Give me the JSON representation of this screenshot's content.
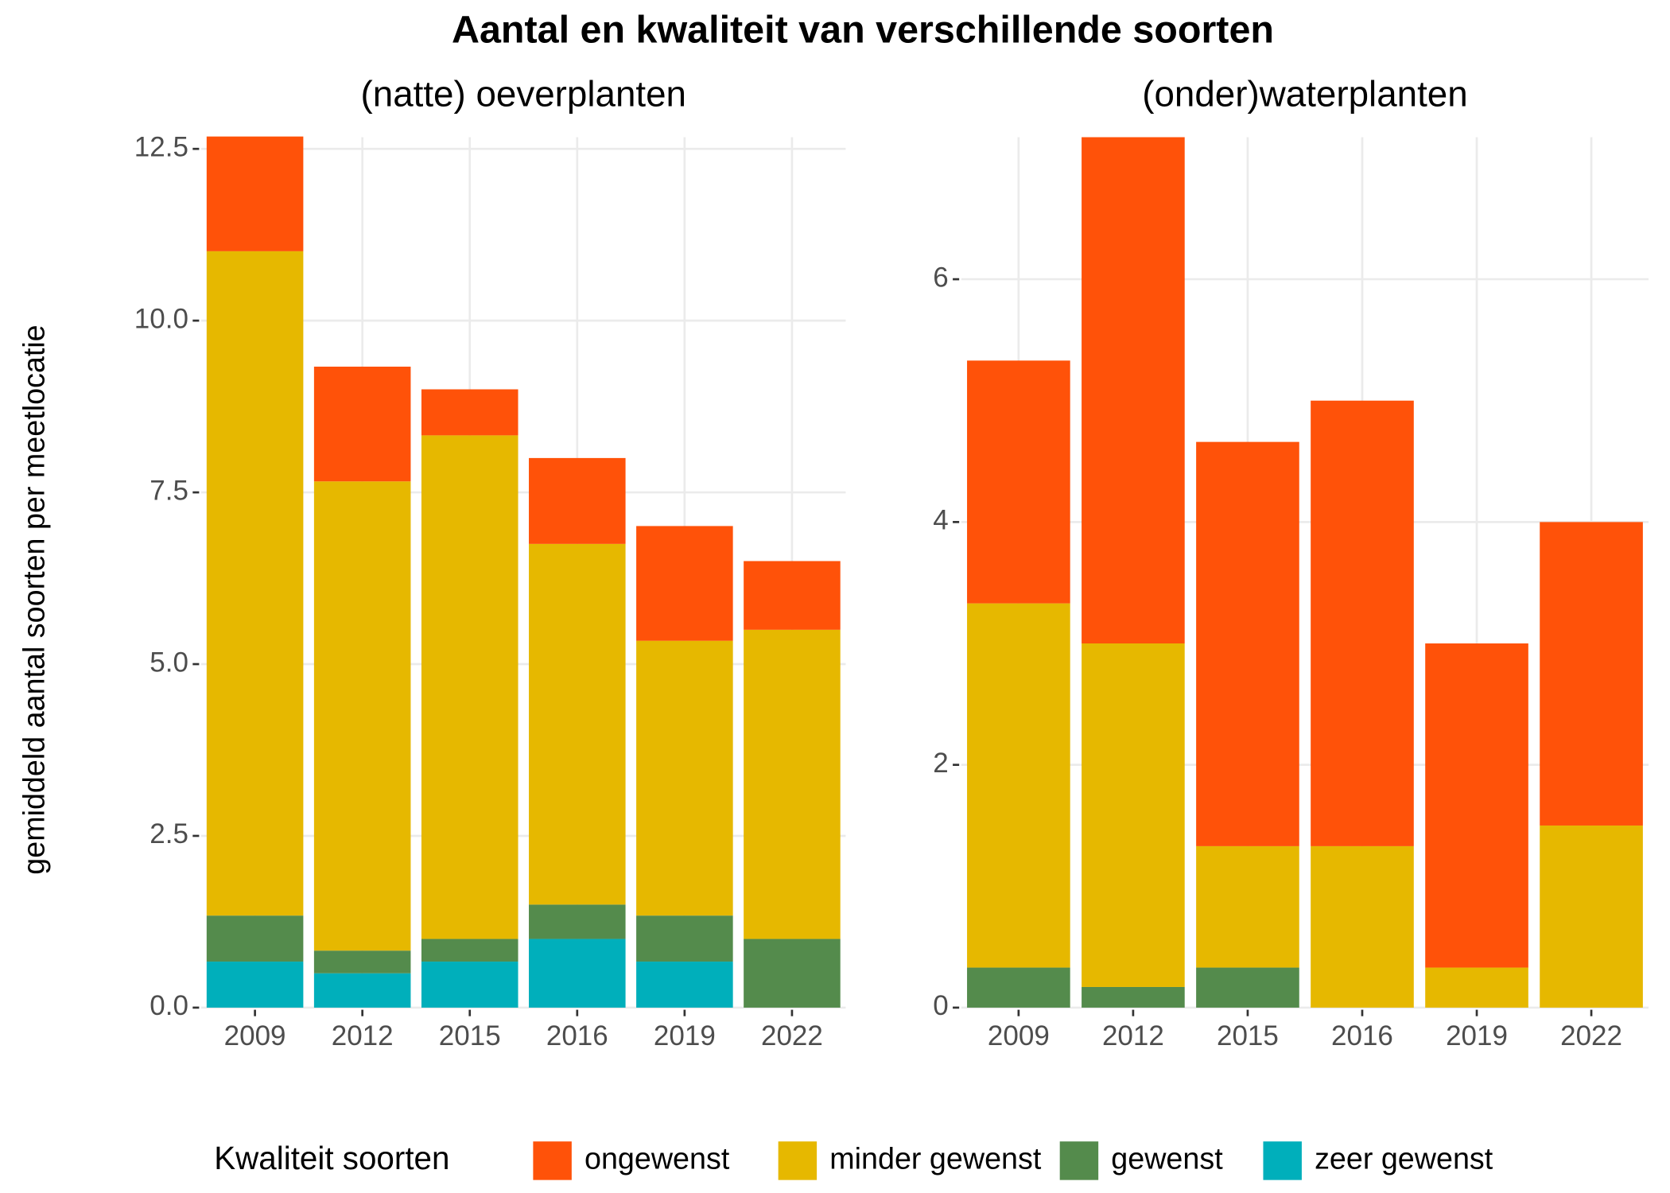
{
  "title": "Aantal en kwaliteit van verschillende soorten",
  "y_label": "gemiddeld aantal soorten per meetlocatie",
  "legend_title": "Kwaliteit soorten",
  "chart_data": [
    {
      "type": "stacked_bar",
      "title": "(natte) oeverplanten",
      "categories": [
        "2009",
        "2012",
        "2015",
        "2016",
        "2019",
        "2022"
      ],
      "series": [
        {
          "name": "ongewenst",
          "color": "#FF5209",
          "values": [
            1.67,
            1.67,
            0.67,
            1.25,
            1.67,
            1.0
          ]
        },
        {
          "name": "minder gewenst",
          "color": "#E6B800",
          "values": [
            9.67,
            6.83,
            7.33,
            5.25,
            4.0,
            4.5
          ]
        },
        {
          "name": "gewenst",
          "color": "#548B4C",
          "values": [
            0.67,
            0.33,
            0.33,
            0.5,
            0.67,
            1.0
          ]
        },
        {
          "name": "zeer gewenst",
          "color": "#00AFBB",
          "values": [
            0.67,
            0.5,
            0.67,
            1.0,
            0.67,
            0
          ]
        }
      ],
      "ylim": [
        0,
        12.67
      ],
      "yticks": [
        {
          "value": 0,
          "label": "0.0"
        },
        2.5,
        {
          "value": 5,
          "label": "5.0"
        },
        7.5,
        {
          "value": 10,
          "label": "10.0"
        },
        12.5
      ],
      "grid": true
    },
    {
      "type": "stacked_bar",
      "title": "(onder)waterplanten",
      "categories": [
        "2009",
        "2012",
        "2015",
        "2016",
        "2019",
        "2022"
      ],
      "series": [
        {
          "name": "ongewenst",
          "color": "#FF5209",
          "values": [
            2.0,
            4.17,
            3.33,
            3.67,
            2.67,
            2.5
          ]
        },
        {
          "name": "minder gewenst",
          "color": "#E6B800",
          "values": [
            3.0,
            2.83,
            1.0,
            1.33,
            0.33,
            1.5
          ]
        },
        {
          "name": "gewenst",
          "color": "#548B4C",
          "values": [
            0.33,
            0.17,
            0.33,
            0,
            0,
            0
          ]
        },
        {
          "name": "zeer gewenst",
          "color": "#00AFBB",
          "values": [
            0,
            0,
            0,
            0,
            0,
            0
          ]
        }
      ],
      "ylim": [
        0,
        7.17
      ],
      "yticks": [
        0,
        2,
        4,
        6
      ],
      "grid": true
    }
  ]
}
